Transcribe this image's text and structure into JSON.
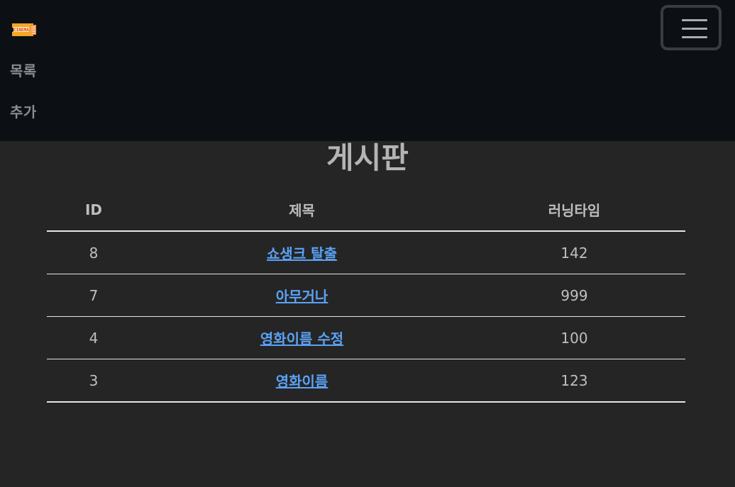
{
  "nav": {
    "logo_text": "CINEMA",
    "links": [
      "목록",
      "추가"
    ],
    "toggler_icon": "hamburger-icon"
  },
  "page": {
    "title": "게시판"
  },
  "table": {
    "headers": [
      "ID",
      "제목",
      "러닝타임"
    ],
    "rows": [
      {
        "id": "8",
        "title": "쇼생크 탈출",
        "runtime": "142"
      },
      {
        "id": "7",
        "title": "아무거나",
        "runtime": "999"
      },
      {
        "id": "4",
        "title": "영화이름 수정",
        "runtime": "100"
      },
      {
        "id": "3",
        "title": "영화이름",
        "runtime": "123"
      }
    ]
  },
  "colors": {
    "navbar_bg": "#0c0f14",
    "page_bg": "#252525",
    "link": "#5aa2f5",
    "logo": "#f5a623"
  }
}
